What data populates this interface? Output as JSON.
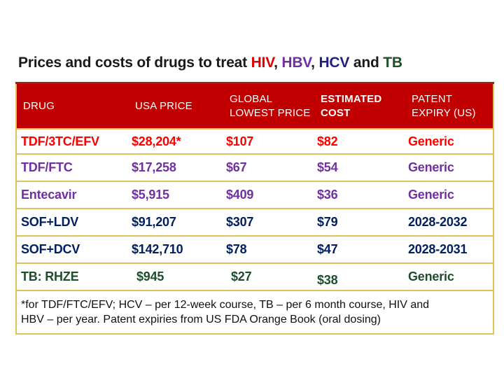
{
  "title": {
    "segments": [
      {
        "text": "Prices and costs of drugs to treat ",
        "color": "#1A1A1A"
      },
      {
        "text": "HIV",
        "color": "#E00000"
      },
      {
        "text": ", ",
        "color": "#1A1A1A"
      },
      {
        "text": "HBV",
        "color": "#7030A0"
      },
      {
        "text": ", ",
        "color": "#1A1A1A"
      },
      {
        "text": "HCV",
        "color": "#202080"
      },
      {
        "text": " and ",
        "color": "#1A1A1A"
      },
      {
        "text": "TB",
        "color": "#1E5128"
      }
    ]
  },
  "table": {
    "columns": [
      {
        "id": "drug",
        "lines": [
          "DRUG"
        ],
        "bold": false
      },
      {
        "id": "usa-price",
        "lines": [
          "USA PRICE"
        ],
        "bold": false
      },
      {
        "id": "global-lowest-price",
        "lines": [
          "GLOBAL",
          "LOWEST PRICE"
        ],
        "bold": false
      },
      {
        "id": "estimated-cost",
        "lines": [
          "ESTIMATED",
          "COST"
        ],
        "bold": true
      },
      {
        "id": "patent-expiry-us",
        "lines": [
          "PATENT",
          "EXPIRY (US)"
        ],
        "bold": false
      }
    ],
    "rows": [
      {
        "color": "#FF0000",
        "cells": [
          "TDF/3TC/EFV",
          "$28,204*",
          "$107",
          "$82",
          "Generic"
        ]
      },
      {
        "color": "#7030A0",
        "cells": [
          "TDF/FTC",
          "$17,258",
          "$67",
          "$54",
          "Generic"
        ]
      },
      {
        "color": "#7030A0",
        "cells": [
          "Entecavir",
          "$5,915",
          "$409",
          "$36",
          "Generic"
        ]
      },
      {
        "color": "#002060",
        "cells": [
          "SOF+LDV",
          "$91,207",
          "$307",
          "$79",
          "2028-2032"
        ]
      },
      {
        "color": "#002060",
        "cells": [
          "SOF+DCV",
          "$142,710",
          "$78",
          "$47",
          "2028-2031"
        ]
      },
      {
        "color": "#1E4D2B",
        "cells": [
          "TB: RHZE",
          "$945",
          "$27",
          "$38",
          "Generic"
        ]
      }
    ],
    "footnote_lines": [
      "*for TDF/FTC/EFV; HCV – per 12-week course, TB – per 6 month course, HIV and",
      "HBV – per year. Patent expiries from US FDA Orange Book (oral dosing)"
    ]
  },
  "colors": {
    "header_bg": "#C00000",
    "header_text": "#FFFFFF",
    "table_border": "#DFC35C",
    "title_text": "#1A1A1A",
    "footnote_text": "#111111"
  }
}
